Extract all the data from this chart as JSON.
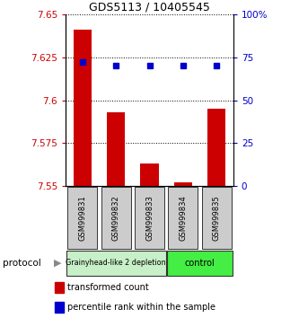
{
  "title": "GDS5113 / 10405545",
  "samples": [
    "GSM999831",
    "GSM999832",
    "GSM999833",
    "GSM999834",
    "GSM999835"
  ],
  "red_values": [
    7.641,
    7.593,
    7.563,
    7.552,
    7.595
  ],
  "blue_values": [
    72,
    70,
    70,
    70,
    70
  ],
  "ylim_left": [
    7.55,
    7.65
  ],
  "ylim_right": [
    0,
    100
  ],
  "yticks_left": [
    7.55,
    7.575,
    7.6,
    7.625,
    7.65
  ],
  "yticks_right": [
    0,
    25,
    50,
    75,
    100
  ],
  "ytick_labels_left": [
    "7.55",
    "7.575",
    "7.6",
    "7.625",
    "7.65"
  ],
  "ytick_labels_right": [
    "0",
    "25",
    "50",
    "75",
    "100%"
  ],
  "group1_label": "Grainyhead-like 2 depletion",
  "group2_label": "control",
  "protocol_label": "protocol",
  "legend_red": "transformed count",
  "legend_blue": "percentile rank within the sample",
  "bar_color": "#cc0000",
  "dot_color": "#0000cc",
  "group1_color": "#c8f0c8",
  "group2_color": "#44ee44",
  "sample_box_color": "#cccccc",
  "bar_bottom": 7.55,
  "background_color": "#ffffff",
  "n_group1": 3,
  "n_group2": 2
}
